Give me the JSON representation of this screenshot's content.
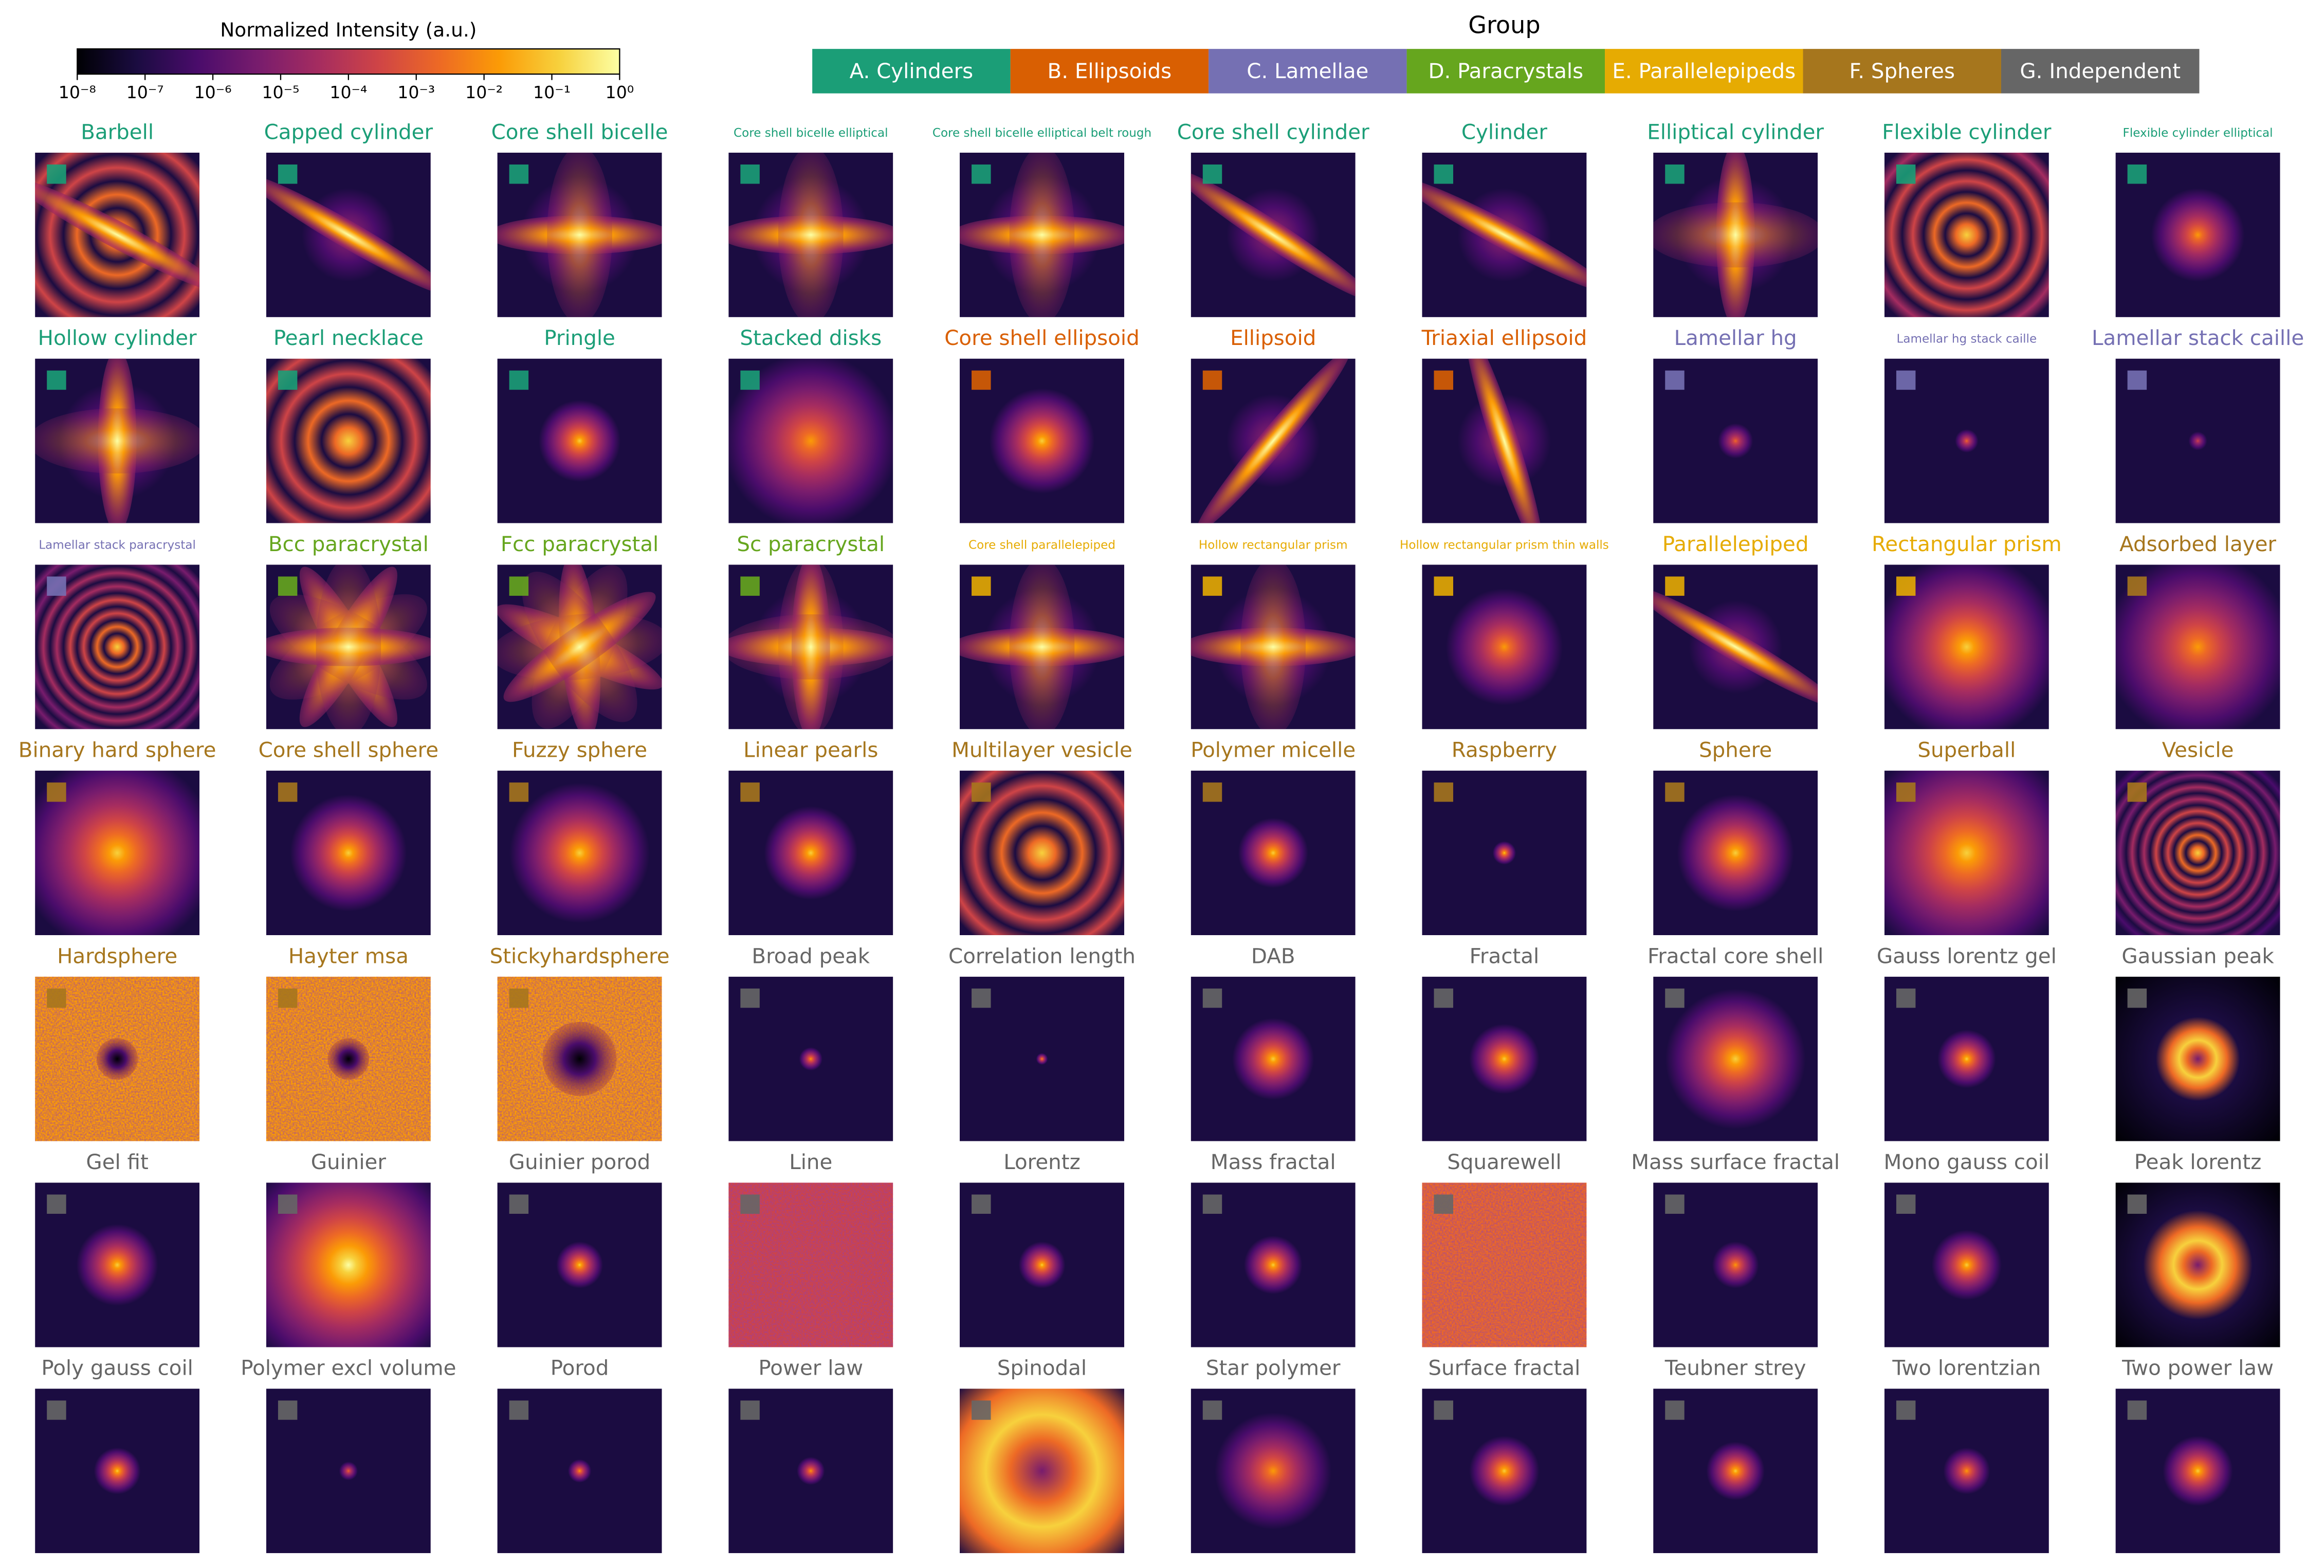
{
  "colorbar": {
    "label": "Normalized Intensity (a.u.)",
    "ticks": [
      "10⁻⁸",
      "10⁻⁷",
      "10⁻⁶",
      "10⁻⁵",
      "10⁻⁴",
      "10⁻³",
      "10⁻²",
      "10⁻¹",
      "10⁰"
    ]
  },
  "legend_title": "Group",
  "groups": [
    {
      "label": "A. Cylinders",
      "color": "#1b9e77",
      "panels": [
        "Barbell",
        "Capped cylinder",
        "Core shell bicelle",
        "Core shell bicelle elliptical",
        "Core shell bicelle elliptical belt rough",
        "Core shell cylinder",
        "Cylinder",
        "Elliptical cylinder",
        "Flexible cylinder",
        "Flexible cylinder elliptical",
        "Hollow cylinder",
        "Pearl necklace",
        "Pringle",
        "Stacked disks"
      ]
    },
    {
      "label": "B. Ellipsoids",
      "color": "#d95f02",
      "panels": [
        "Core shell ellipsoid",
        "Ellipsoid",
        "Triaxial ellipsoid"
      ]
    },
    {
      "label": "C. Lamellae",
      "color": "#7570b3",
      "panels": [
        "Lamellar hg",
        "Lamellar hg stack caille",
        "Lamellar stack caille",
        "Lamellar stack paracrystal"
      ]
    },
    {
      "label": "D. Paracrystals",
      "color": "#66a61e",
      "panels": [
        "Bcc paracrystal",
        "Fcc paracrystal",
        "Sc paracrystal"
      ]
    },
    {
      "label": "E. Parallelepipeds",
      "color": "#e6ab02",
      "panels": [
        "Core shell parallelepiped",
        "Hollow rectangular prism",
        "Hollow rectangular prism thin walls",
        "Parallelepiped",
        "Rectangular prism"
      ]
    },
    {
      "label": "F. Spheres",
      "color": "#a6761d",
      "panels": [
        "Adsorbed layer",
        "Binary hard sphere",
        "Core shell sphere",
        "Fuzzy sphere",
        "Linear pearls",
        "Multilayer vesicle",
        "Polymer micelle",
        "Raspberry",
        "Sphere",
        "Superball",
        "Vesicle",
        "Hardsphere",
        "Hayter msa",
        "Stickyhardsphere"
      ]
    },
    {
      "label": "G. Independent",
      "color": "#666666",
      "panels": [
        "Broad peak",
        "Correlation length",
        "DAB",
        "Fractal",
        "Fractal core shell",
        "Gauss lorentz gel",
        "Gaussian peak",
        "Gel fit",
        "Guinier",
        "Guinier porod",
        "Line",
        "Lorentz",
        "Mass fractal",
        "Squarewell",
        "Mass surface fractal",
        "Mono gauss coil",
        "Peak lorentz",
        "Poly gauss coil",
        "Polymer excl volume",
        "Porod",
        "Power law",
        "Spinodal",
        "Star polymer",
        "Surface fractal",
        "Teubner strey",
        "Two lorentzian",
        "Two power law"
      ]
    }
  ]
}
